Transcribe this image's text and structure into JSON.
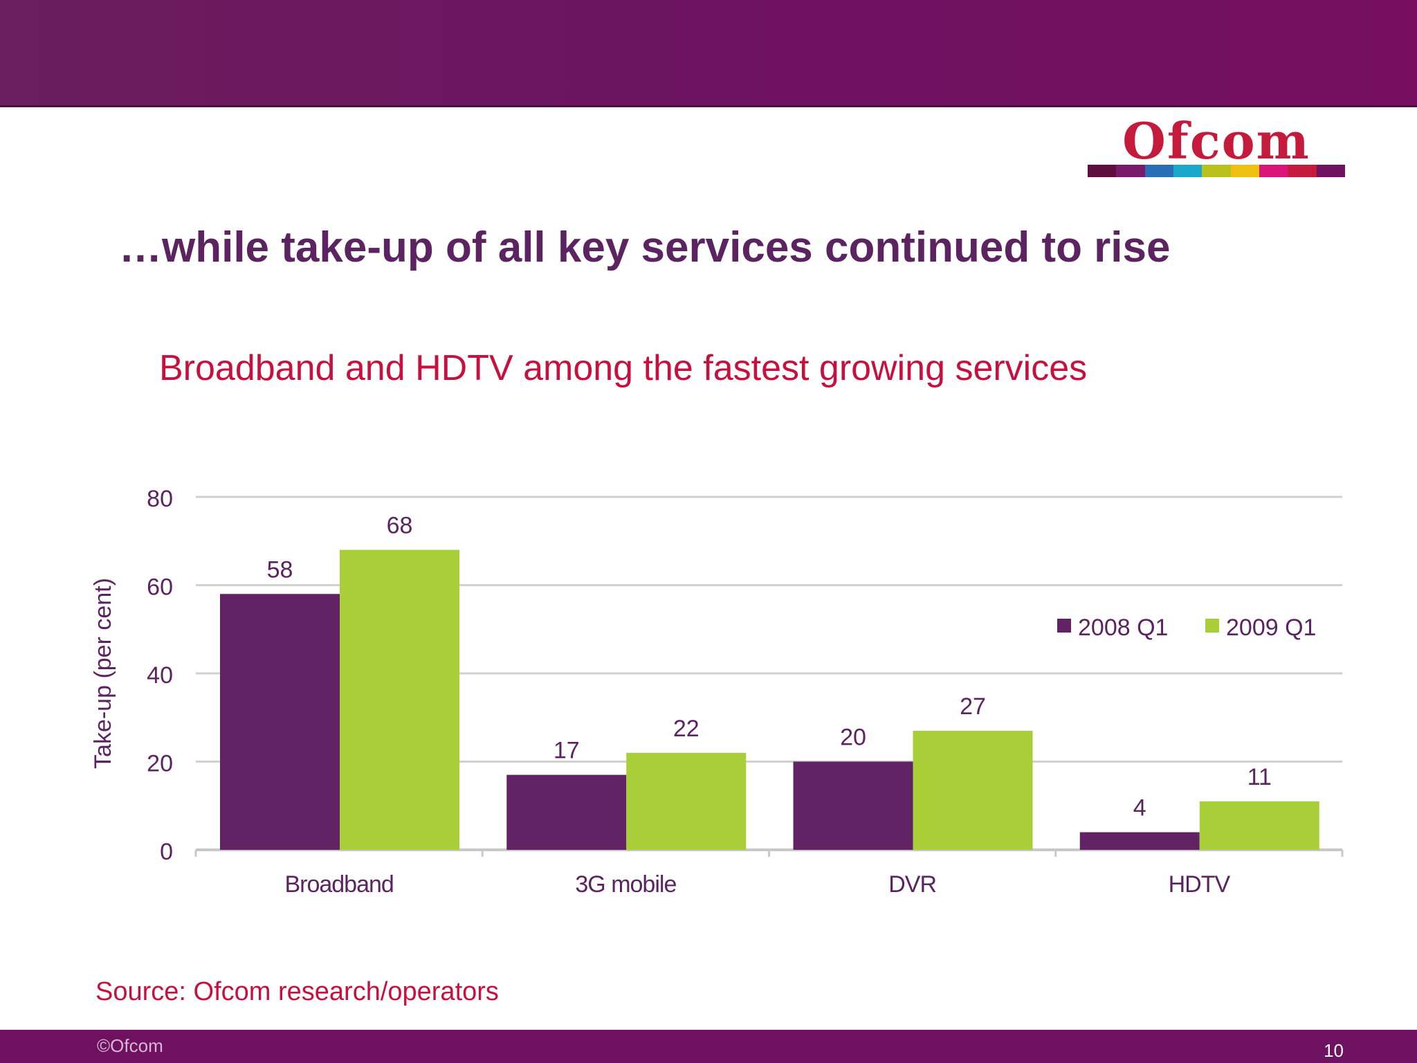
{
  "slide": {
    "title": "…while take-up of all key services continued to rise",
    "subtitle": "Broadband and HDTV among the fastest growing services",
    "source": "Source: Ofcom research/operators",
    "copyright": "©Ofcom",
    "page_number": "10"
  },
  "logo": {
    "text": "Ofcom",
    "strip_colors": [
      "#5e0f3e",
      "#7a1a6a",
      "#2a6fb5",
      "#1aa8c8",
      "#b8c21a",
      "#f0c010",
      "#d9137a",
      "#c41a3b",
      "#6d1160"
    ]
  },
  "colors": {
    "series_2008": "#622364",
    "series_2009": "#a8cf38",
    "axis_text": "#5b2461",
    "gridline": "#d0d0d0"
  },
  "chart_data": {
    "type": "bar",
    "title": "Broadband and HDTV among the fastest growing services",
    "xlabel": "",
    "ylabel": "Take-up (per cent)",
    "ylim": [
      0,
      80
    ],
    "yticks": [
      0,
      20,
      40,
      60,
      80
    ],
    "grid": true,
    "legend_position": "right",
    "categories": [
      "Broadband",
      "3G mobile",
      "DVR",
      "HDTV"
    ],
    "series": [
      {
        "name": "2008 Q1",
        "values": [
          58,
          17,
          20,
          4
        ]
      },
      {
        "name": "2009 Q1",
        "values": [
          68,
          22,
          27,
          11
        ]
      }
    ]
  }
}
